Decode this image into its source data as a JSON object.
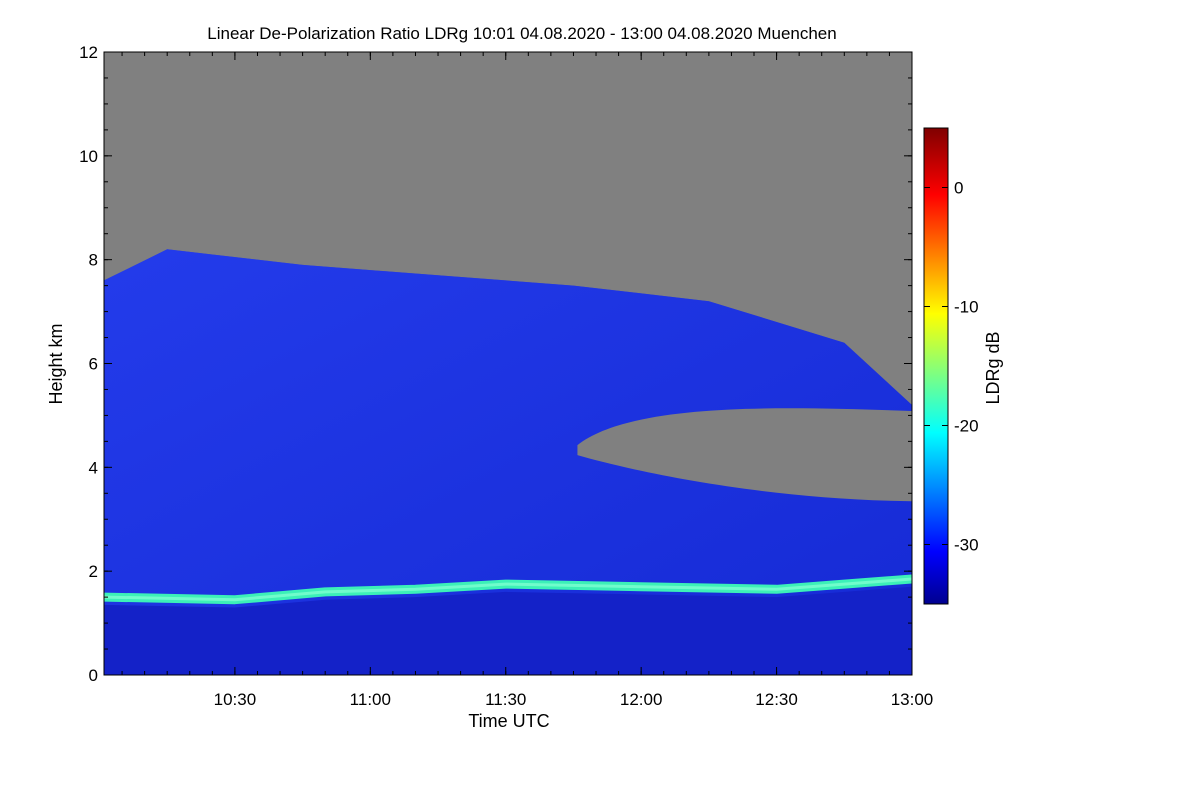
{
  "chart_data": {
    "type": "heatmap",
    "title": "Linear De-Polarization Ratio LDRg   10:01 04.08.2020 - 13:00 04.08.2020 Muenchen",
    "xlabel": "Time UTC",
    "ylabel": "Height km",
    "x_range": [
      "10:01",
      "13:00"
    ],
    "x_ticks": [
      "10:30",
      "11:00",
      "11:30",
      "12:00",
      "12:30",
      "13:00"
    ],
    "ylim": [
      0,
      12
    ],
    "y_ticks": [
      "0",
      "2",
      "4",
      "6",
      "8",
      "10",
      "12"
    ],
    "colorbar": {
      "label": "LDRg dB",
      "range": [
        -35,
        5
      ],
      "ticks": [
        "0",
        "-10",
        "-20",
        "-30"
      ],
      "colormap": "jet"
    },
    "colors": {
      "no_signal": "#808080",
      "background_ldr": "#1a2fe6",
      "layer_ldr": "#3cf0b8",
      "lower_ldr": "#1422c8"
    },
    "features": {
      "cloud_top_km": [
        7.6,
        8.2,
        7.9,
        7.7,
        7.5,
        7.2,
        6.4,
        5.2
      ],
      "cloud_top_times": [
        "10:01",
        "10:15",
        "10:45",
        "11:15",
        "11:45",
        "12:15",
        "12:45",
        "13:00"
      ],
      "cloud_free_gap_km": [
        3.5,
        5.2
      ],
      "cloud_free_gap_times": [
        "11:45",
        "13:00"
      ],
      "boundary_layer_top_km": [
        1.5,
        1.45,
        1.6,
        1.65,
        1.75,
        1.7,
        1.65,
        1.75,
        1.85
      ],
      "boundary_layer_times": [
        "10:01",
        "10:30",
        "10:50",
        "11:10",
        "11:30",
        "12:00",
        "12:30",
        "12:45",
        "13:00"
      ],
      "boundary_layer_ldr_db": -20,
      "cirrus_ldr_db": -28,
      "lower_ldr_db": -32
    }
  }
}
